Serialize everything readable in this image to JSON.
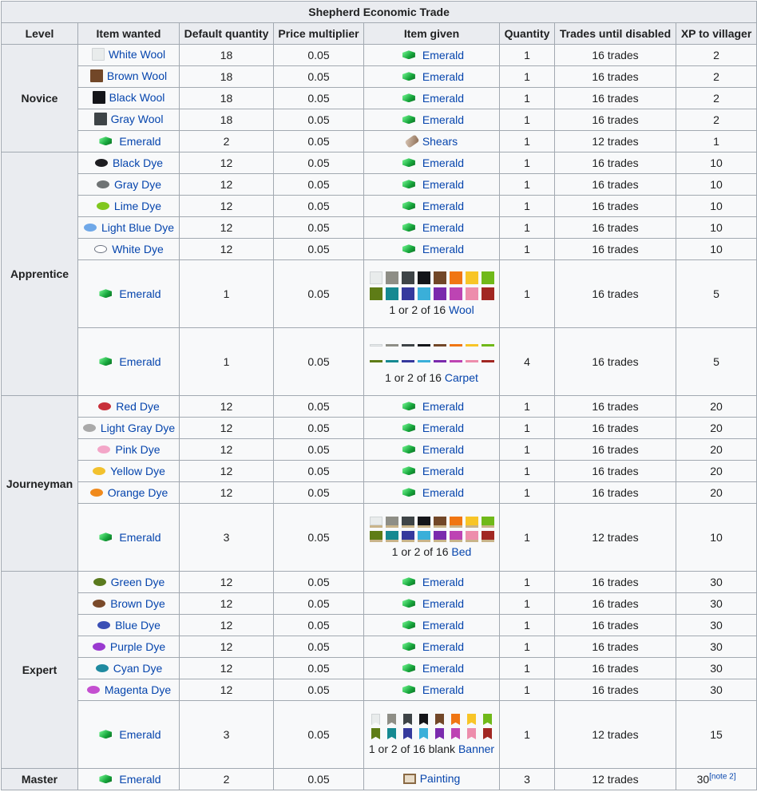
{
  "title": "Shepherd Economic Trade",
  "headers": [
    "Level",
    "Item wanted",
    "Default quantity",
    "Price multiplier",
    "Item given",
    "Quantity",
    "Trades until disabled",
    "XP to villager"
  ],
  "colors": {
    "emerald": "#17a63c",
    "wool16": [
      "#e9ecec",
      "#8e8e86",
      "#3e4447",
      "#141519",
      "#724728",
      "#f07613",
      "#f8c527",
      "#70b919",
      "#5e7c16",
      "#158991",
      "#35399d",
      "#3aafd9",
      "#7a2aad",
      "#bd44b3",
      "#ed8dac",
      "#a12722"
    ]
  },
  "rows": [
    {
      "group": "Novice",
      "rowspan": 5,
      "wanted": "White Wool",
      "wanted_icon": "white-wool-icon",
      "wanted_color": "#e9ecec",
      "default_qty": "18",
      "price_mult": "0.05",
      "given": "Emerald",
      "given_icon": "emerald-icon",
      "qty": "1",
      "trades": "16 trades",
      "xp": "2"
    },
    {
      "wanted": "Brown Wool",
      "wanted_icon": "brown-wool-icon",
      "wanted_color": "#724728",
      "default_qty": "18",
      "price_mult": "0.05",
      "given": "Emerald",
      "given_icon": "emerald-icon",
      "qty": "1",
      "trades": "16 trades",
      "xp": "2"
    },
    {
      "wanted": "Black Wool",
      "wanted_icon": "black-wool-icon",
      "wanted_color": "#141519",
      "default_qty": "18",
      "price_mult": "0.05",
      "given": "Emerald",
      "given_icon": "emerald-icon",
      "qty": "1",
      "trades": "16 trades",
      "xp": "2"
    },
    {
      "wanted": "Gray Wool",
      "wanted_icon": "gray-wool-icon",
      "wanted_color": "#3e4447",
      "default_qty": "18",
      "price_mult": "0.05",
      "given": "Emerald",
      "given_icon": "emerald-icon",
      "qty": "1",
      "trades": "16 trades",
      "xp": "2"
    },
    {
      "wanted": "Emerald",
      "wanted_icon": "emerald-icon",
      "default_qty": "2",
      "price_mult": "0.05",
      "given": "Shears",
      "given_icon": "shears-icon",
      "qty": "1",
      "trades": "12 trades",
      "xp": "1"
    },
    {
      "group": "Apprentice",
      "rowspan": 7,
      "wanted": "Black Dye",
      "wanted_icon": "black-dye-icon",
      "wanted_color": "#1d1d21",
      "default_qty": "12",
      "price_mult": "0.05",
      "given": "Emerald",
      "given_icon": "emerald-icon",
      "qty": "1",
      "trades": "16 trades",
      "xp": "10"
    },
    {
      "wanted": "Gray Dye",
      "wanted_icon": "gray-dye-icon",
      "wanted_color": "#6f7374",
      "default_qty": "12",
      "price_mult": "0.05",
      "given": "Emerald",
      "given_icon": "emerald-icon",
      "qty": "1",
      "trades": "16 trades",
      "xp": "10"
    },
    {
      "wanted": "Lime Dye",
      "wanted_icon": "lime-dye-icon",
      "wanted_color": "#80c71f",
      "default_qty": "12",
      "price_mult": "0.05",
      "given": "Emerald",
      "given_icon": "emerald-icon",
      "qty": "1",
      "trades": "16 trades",
      "xp": "10"
    },
    {
      "wanted": "Light Blue Dye",
      "wanted_icon": "light-blue-dye-icon",
      "wanted_color": "#6fa8e8",
      "default_qty": "12",
      "price_mult": "0.05",
      "given": "Emerald",
      "given_icon": "emerald-icon",
      "qty": "1",
      "trades": "16 trades",
      "xp": "10"
    },
    {
      "wanted": "White Dye",
      "wanted_icon": "white-dye-icon",
      "wanted_color": "#ffffff",
      "default_qty": "12",
      "price_mult": "0.05",
      "given": "Emerald",
      "given_icon": "emerald-icon",
      "qty": "1",
      "trades": "16 trades",
      "xp": "10"
    },
    {
      "wanted": "Emerald",
      "wanted_icon": "emerald-icon",
      "default_qty": "1",
      "price_mult": "0.05",
      "given_kind": "wool",
      "given_prefix": "1 or 2 of 16 ",
      "given": "Wool",
      "given_icon": "wool-grid",
      "qty": "1",
      "trades": "16 trades",
      "xp": "5"
    },
    {
      "wanted": "Emerald",
      "wanted_icon": "emerald-icon",
      "default_qty": "1",
      "price_mult": "0.05",
      "given_kind": "carpet",
      "given_prefix": "1 or 2 of 16 ",
      "given": "Carpet",
      "given_icon": "carpet-grid",
      "qty": "4",
      "trades": "16 trades",
      "xp": "5"
    },
    {
      "group": "Journeyman",
      "rowspan": 6,
      "wanted": "Red Dye",
      "wanted_icon": "red-dye-icon",
      "wanted_color": "#c8303a",
      "default_qty": "12",
      "price_mult": "0.05",
      "given": "Emerald",
      "given_icon": "emerald-icon",
      "qty": "1",
      "trades": "16 trades",
      "xp": "20"
    },
    {
      "wanted": "Light Gray Dye",
      "wanted_icon": "light-gray-dye-icon",
      "wanted_color": "#a9a9a9",
      "default_qty": "12",
      "price_mult": "0.05",
      "given": "Emerald",
      "given_icon": "emerald-icon",
      "qty": "1",
      "trades": "16 trades",
      "xp": "20"
    },
    {
      "wanted": "Pink Dye",
      "wanted_icon": "pink-dye-icon",
      "wanted_color": "#f3a6c8",
      "default_qty": "12",
      "price_mult": "0.05",
      "given": "Emerald",
      "given_icon": "emerald-icon",
      "qty": "1",
      "trades": "16 trades",
      "xp": "20"
    },
    {
      "wanted": "Yellow Dye",
      "wanted_icon": "yellow-dye-icon",
      "wanted_color": "#f2c12e",
      "default_qty": "12",
      "price_mult": "0.05",
      "given": "Emerald",
      "given_icon": "emerald-icon",
      "qty": "1",
      "trades": "16 trades",
      "xp": "20"
    },
    {
      "wanted": "Orange Dye",
      "wanted_icon": "orange-dye-icon",
      "wanted_color": "#f08a1c",
      "default_qty": "12",
      "price_mult": "0.05",
      "given": "Emerald",
      "given_icon": "emerald-icon",
      "qty": "1",
      "trades": "16 trades",
      "xp": "20"
    },
    {
      "wanted": "Emerald",
      "wanted_icon": "emerald-icon",
      "default_qty": "3",
      "price_mult": "0.05",
      "given_kind": "bed",
      "given_prefix": "1 or 2 of 16 ",
      "given": "Bed",
      "given_icon": "bed-grid",
      "qty": "1",
      "trades": "12 trades",
      "xp": "10"
    },
    {
      "group": "Expert",
      "rowspan": 7,
      "wanted": "Green Dye",
      "wanted_icon": "green-dye-icon",
      "wanted_color": "#5a7a1e",
      "default_qty": "12",
      "price_mult": "0.05",
      "given": "Emerald",
      "given_icon": "emerald-icon",
      "qty": "1",
      "trades": "16 trades",
      "xp": "30"
    },
    {
      "wanted": "Brown Dye",
      "wanted_icon": "brown-dye-icon",
      "wanted_color": "#7a4a2a",
      "default_qty": "12",
      "price_mult": "0.05",
      "given": "Emerald",
      "given_icon": "emerald-icon",
      "qty": "1",
      "trades": "16 trades",
      "xp": "30"
    },
    {
      "wanted": "Blue Dye",
      "wanted_icon": "blue-dye-icon",
      "wanted_color": "#3a4fb5",
      "default_qty": "12",
      "price_mult": "0.05",
      "given": "Emerald",
      "given_icon": "emerald-icon",
      "qty": "1",
      "trades": "16 trades",
      "xp": "30"
    },
    {
      "wanted": "Purple Dye",
      "wanted_icon": "purple-dye-icon",
      "wanted_color": "#9a3ad0",
      "default_qty": "12",
      "price_mult": "0.05",
      "given": "Emerald",
      "given_icon": "emerald-icon",
      "qty": "1",
      "trades": "16 trades",
      "xp": "30"
    },
    {
      "wanted": "Cyan Dye",
      "wanted_icon": "cyan-dye-icon",
      "wanted_color": "#1f8aa0",
      "default_qty": "12",
      "price_mult": "0.05",
      "given": "Emerald",
      "given_icon": "emerald-icon",
      "qty": "1",
      "trades": "16 trades",
      "xp": "30"
    },
    {
      "wanted": "Magenta Dye",
      "wanted_icon": "magenta-dye-icon",
      "wanted_color": "#c44fd0",
      "default_qty": "12",
      "price_mult": "0.05",
      "given": "Emerald",
      "given_icon": "emerald-icon",
      "qty": "1",
      "trades": "16 trades",
      "xp": "30"
    },
    {
      "wanted": "Emerald",
      "wanted_icon": "emerald-icon",
      "default_qty": "3",
      "price_mult": "0.05",
      "given_kind": "banner",
      "given_prefix": "1 or 2 of 16 blank ",
      "given": "Banner",
      "given_icon": "banner-grid",
      "qty": "1",
      "trades": "12 trades",
      "xp": "15"
    },
    {
      "group": "Master",
      "rowspan": 1,
      "wanted": "Emerald",
      "wanted_icon": "emerald-icon",
      "default_qty": "2",
      "price_mult": "0.05",
      "given": "Painting",
      "given_icon": "painting-icon",
      "qty": "3",
      "trades": "12 trades",
      "xp": "30",
      "xp_note": "[note 2]"
    }
  ]
}
